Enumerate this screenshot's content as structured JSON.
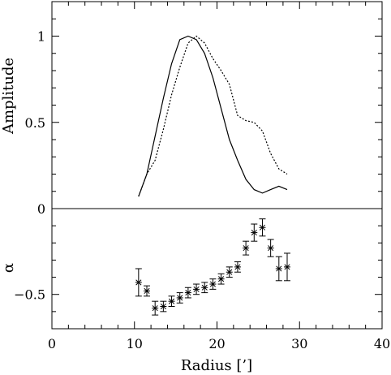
{
  "chart_data": [
    {
      "panel": "top",
      "type": "line",
      "ylabel": "Amplitude",
      "xlim": [
        0,
        40
      ],
      "ylim": [
        0,
        1.2
      ],
      "yticks": [
        0,
        0.5,
        1
      ],
      "ytick_labels": [
        "0",
        "0.5",
        "1"
      ],
      "series": [
        {
          "style": "solid",
          "x": [
            10.5,
            11.5,
            12.5,
            13.5,
            14.5,
            15.5,
            16.5,
            17.5,
            18.5,
            19.5,
            20.5,
            21.5,
            22.5,
            23.5,
            24.5,
            25.5,
            26.5,
            27.5,
            28.5
          ],
          "y": [
            0.07,
            0.2,
            0.42,
            0.64,
            0.84,
            0.98,
            1.0,
            0.98,
            0.9,
            0.76,
            0.58,
            0.4,
            0.28,
            0.17,
            0.11,
            0.09,
            0.11,
            0.13,
            0.11
          ]
        },
        {
          "style": "dotted",
          "x": [
            10.5,
            11.5,
            12.5,
            13.5,
            14.5,
            15.5,
            16.5,
            17.5,
            18.5,
            19.5,
            20.5,
            21.5,
            22.5,
            23.5,
            24.5,
            25.5,
            26.5,
            27.5,
            28.5
          ],
          "y": [
            0.07,
            0.2,
            0.28,
            0.46,
            0.66,
            0.82,
            0.96,
            1.0,
            0.96,
            0.87,
            0.8,
            0.72,
            0.54,
            0.51,
            0.5,
            0.45,
            0.32,
            0.23,
            0.2
          ]
        }
      ]
    },
    {
      "panel": "bottom",
      "type": "scatter",
      "xlabel": "Radius [’]",
      "ylabel": "α",
      "xlim": [
        0,
        40
      ],
      "ylim": [
        -0.7,
        0
      ],
      "xticks": [
        0,
        10,
        20,
        30,
        40
      ],
      "xtick_labels": [
        "0",
        "10",
        "20",
        "30",
        "40"
      ],
      "yticks": [
        -0.5
      ],
      "ytick_labels": [
        "−0.5"
      ],
      "series": [
        {
          "marker": "asterisk",
          "x": [
            10.5,
            11.5,
            12.5,
            13.5,
            14.5,
            15.5,
            16.5,
            17.5,
            18.5,
            19.5,
            20.5,
            21.5,
            22.5,
            23.5,
            24.5,
            25.5,
            26.5,
            27.5,
            28.5
          ],
          "y": [
            -0.43,
            -0.48,
            -0.58,
            -0.57,
            -0.54,
            -0.52,
            -0.49,
            -0.47,
            -0.46,
            -0.44,
            -0.41,
            -0.37,
            -0.34,
            -0.23,
            -0.14,
            -0.11,
            -0.23,
            -0.35,
            -0.34
          ],
          "err": [
            0.08,
            0.03,
            0.04,
            0.03,
            0.03,
            0.03,
            0.03,
            0.03,
            0.03,
            0.03,
            0.03,
            0.03,
            0.03,
            0.04,
            0.05,
            0.05,
            0.05,
            0.07,
            0.08
          ]
        }
      ]
    }
  ]
}
